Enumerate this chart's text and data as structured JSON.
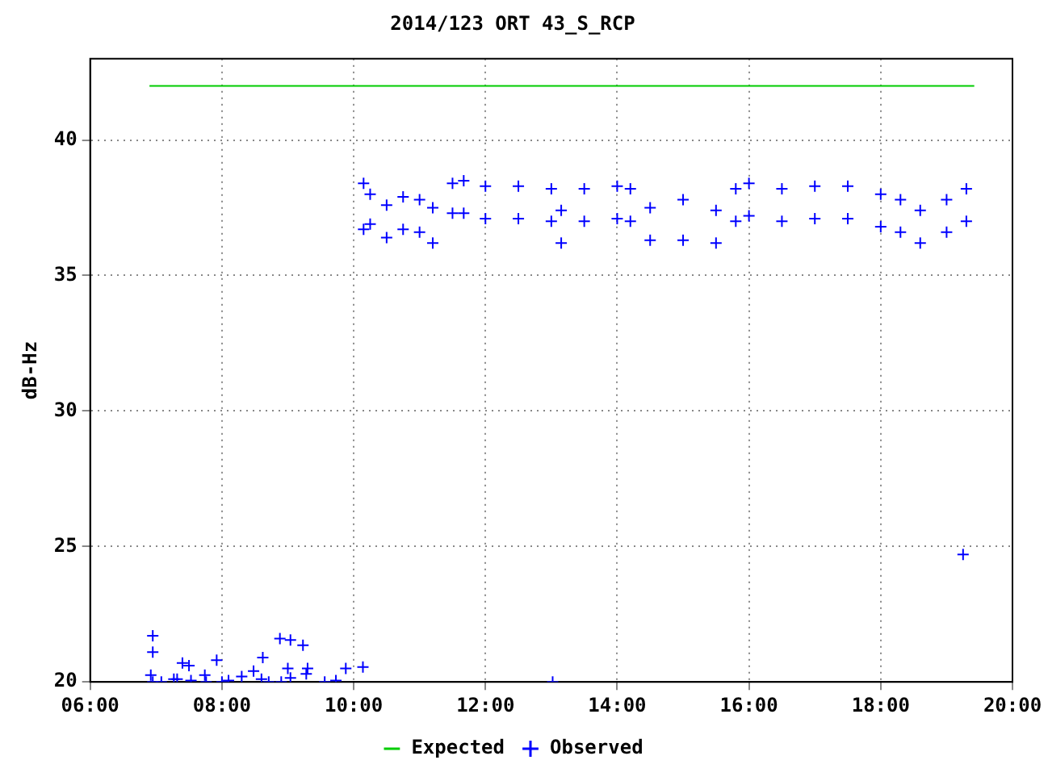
{
  "chart_data": {
    "type": "scatter",
    "title": "2014/123 ORT 43_S_RCP",
    "ylabel": "dB-Hz",
    "xlim": [
      6,
      20
    ],
    "xticks": [
      {
        "value": 6,
        "label": "06:00"
      },
      {
        "value": 8,
        "label": "08:00"
      },
      {
        "value": 10,
        "label": "10:00"
      },
      {
        "value": 12,
        "label": "12:00"
      },
      {
        "value": 14,
        "label": "14:00"
      },
      {
        "value": 16,
        "label": "16:00"
      },
      {
        "value": 18,
        "label": "18:00"
      },
      {
        "value": 20,
        "label": "20:00"
      }
    ],
    "ylim": [
      20,
      43
    ],
    "yticks": [
      20,
      25,
      30,
      35,
      40
    ],
    "grid": true,
    "legend": "bottom",
    "series": [
      {
        "name": "Expected",
        "type": "line",
        "color": "#00cc00",
        "marker": "none",
        "line_style": "solid",
        "x": [
          6.9,
          19.42
        ],
        "values": [
          42,
          42
        ]
      },
      {
        "name": "Observed",
        "color": "#0000ff",
        "marker": "cross",
        "x": [
          6.95,
          6.95,
          6.92,
          6.95,
          7.08,
          7.27,
          7.32,
          7.4,
          7.5,
          7.53,
          7.74,
          7.76,
          7.92,
          8.0,
          8.1,
          8.3,
          8.48,
          8.62,
          8.6,
          8.71,
          8.88,
          9.04,
          9.23,
          9.0,
          9.04,
          9.3,
          9.28,
          8.9,
          9.56,
          9.73,
          9.88,
          10.14,
          13.02,
          19.25,
          10.15,
          10.15,
          10.25,
          10.25,
          10.5,
          10.5,
          10.75,
          10.75,
          11.0,
          11.0,
          11.2,
          11.2,
          11.5,
          11.5,
          11.67,
          11.67,
          12.0,
          12.0,
          12.5,
          12.5,
          13.0,
          13.0,
          13.15,
          13.15,
          13.5,
          13.5,
          14.0,
          14.0,
          14.2,
          14.2,
          14.5,
          14.5,
          15.0,
          15.0,
          15.5,
          15.5,
          15.8,
          15.8,
          16.0,
          16.0,
          16.5,
          16.5,
          17.0,
          17.0,
          17.5,
          17.5,
          18.0,
          18.0,
          18.3,
          18.3,
          18.6,
          18.6,
          19.0,
          19.0,
          19.3,
          19.3
        ],
        "values": [
          21.7,
          21.1,
          20.25,
          20,
          20,
          20.1,
          20.1,
          20.7,
          20.6,
          20.05,
          20.25,
          20,
          20.8,
          20,
          20.05,
          20.2,
          20.4,
          20.9,
          20.1,
          20,
          21.6,
          21.55,
          21.35,
          20.5,
          20.15,
          20.5,
          20.3,
          20,
          20,
          20.05,
          20.5,
          20.55,
          20,
          24.7,
          38.4,
          36.7,
          38,
          36.9,
          37.6,
          36.4,
          37.9,
          36.7,
          37.8,
          36.6,
          37.5,
          36.2,
          38.4,
          37.3,
          38.5,
          37.3,
          38.3,
          37.1,
          38.3,
          37.1,
          38.2,
          37,
          37.4,
          36.2,
          38.2,
          37,
          38.3,
          37.1,
          38.2,
          37,
          37.5,
          36.3,
          37.8,
          36.3,
          37.4,
          36.2,
          38.2,
          37,
          38.4,
          37.2,
          38.2,
          37,
          38.3,
          37.1,
          38.3,
          37.1,
          38,
          36.8,
          37.8,
          36.6,
          37.4,
          36.2,
          37.8,
          36.6,
          38.2,
          37
        ]
      }
    ]
  }
}
